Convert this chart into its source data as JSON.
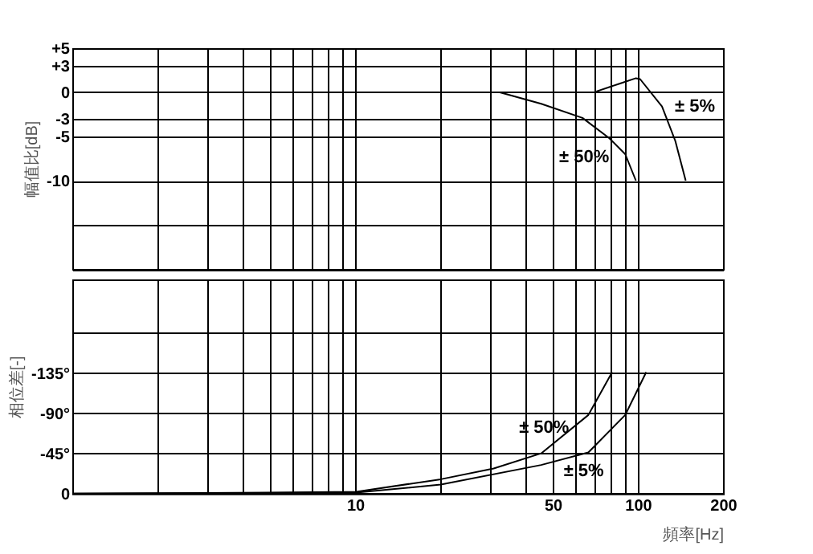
{
  "chart_data": [
    {
      "type": "line",
      "ylabel": "幅值比[dB]",
      "log": "x",
      "grid": true,
      "legend": false,
      "marker": "none",
      "line_style": "solid",
      "tick_labels": "y",
      "xlim": [
        1,
        200
      ],
      "xticks": [
        {
          "value": 1,
          "label": null
        },
        {
          "value": 2,
          "label": null
        },
        {
          "value": 3,
          "label": null
        },
        {
          "value": 4,
          "label": null
        },
        {
          "value": 5,
          "label": null
        },
        {
          "value": 6,
          "label": null
        },
        {
          "value": 7,
          "label": null
        },
        {
          "value": 8,
          "label": null
        },
        {
          "value": 9,
          "label": null
        },
        {
          "value": 10,
          "label": null
        },
        {
          "value": 20,
          "label": null
        },
        {
          "value": 30,
          "label": null
        },
        {
          "value": 40,
          "label": null
        },
        {
          "value": 50,
          "label": null
        },
        {
          "value": 60,
          "label": null
        },
        {
          "value": 70,
          "label": null
        },
        {
          "value": 80,
          "label": null
        },
        {
          "value": 90,
          "label": null
        },
        {
          "value": 100,
          "label": null
        },
        {
          "value": 200,
          "label": null
        }
      ],
      "ylim": [
        -20,
        5
      ],
      "yticks": [
        {
          "value": 5,
          "label": "+5"
        },
        {
          "value": 3,
          "label": "+3"
        },
        0,
        -3,
        -5,
        -10,
        {
          "value": -15,
          "label": null
        },
        {
          "value": -20,
          "label": null
        }
      ],
      "series": [
        {
          "name": "± 50%",
          "color": "#000000",
          "x": [
            32.5,
            45.5,
            63.7,
            79.3,
            90.2,
            98.4
          ],
          "values": [
            0,
            -1.3,
            -2.9,
            -5.2,
            -7.0,
            -10
          ]
        },
        {
          "name": "± 5%",
          "color": "#000000",
          "x": [
            71.3,
            86.5,
            98.4,
            101.8,
            121.7,
            135.6,
            147.6
          ],
          "values": [
            0.1,
            1.0,
            1.6,
            1.5,
            -1.6,
            -5.5,
            -10
          ]
        }
      ]
    },
    {
      "type": "line",
      "ylabel": "相位差[-]",
      "xlabel": "頻率[Hz]",
      "log": "x",
      "grid": true,
      "legend": false,
      "marker": "none",
      "line_style": "solid",
      "xlim": [
        1,
        200
      ],
      "xticks": [
        {
          "value": 1,
          "label": null
        },
        {
          "value": 2,
          "label": null
        },
        {
          "value": 3,
          "label": null
        },
        {
          "value": 4,
          "label": null
        },
        {
          "value": 5,
          "label": null
        },
        {
          "value": 6,
          "label": null
        },
        {
          "value": 7,
          "label": null
        },
        {
          "value": 8,
          "label": null
        },
        {
          "value": 9,
          "label": null
        },
        10,
        {
          "value": 20,
          "label": null
        },
        {
          "value": 30,
          "label": null
        },
        {
          "value": 40,
          "label": null
        },
        50,
        {
          "value": 60,
          "label": null
        },
        {
          "value": 70,
          "label": null
        },
        {
          "value": 80,
          "label": null
        },
        {
          "value": 90,
          "label": null
        },
        100,
        200
      ],
      "ylim": [
        0,
        -240
      ],
      "yticks": [
        0,
        {
          "value": -45,
          "label": "-45°"
        },
        {
          "value": -90,
          "label": "-90°"
        },
        {
          "value": -135,
          "label": "-135°"
        },
        {
          "value": -180,
          "label": null
        }
      ],
      "series": [
        {
          "name": "± 50%",
          "color": "#000000",
          "x": [
            1,
            5,
            10.1,
            20.1,
            30.9,
            45.5,
            66.8,
            81.1
          ],
          "values": [
            0,
            -1,
            -2,
            -16,
            -28,
            -45,
            -88,
            -136
          ]
        },
        {
          "name": "± 5%",
          "color": "#000000",
          "x": [
            1,
            10.1,
            20.1,
            45.5,
            66.8,
            90.2,
            107
          ],
          "values": [
            0,
            -1,
            -10,
            -32,
            -46,
            -88,
            -136
          ]
        }
      ]
    }
  ]
}
